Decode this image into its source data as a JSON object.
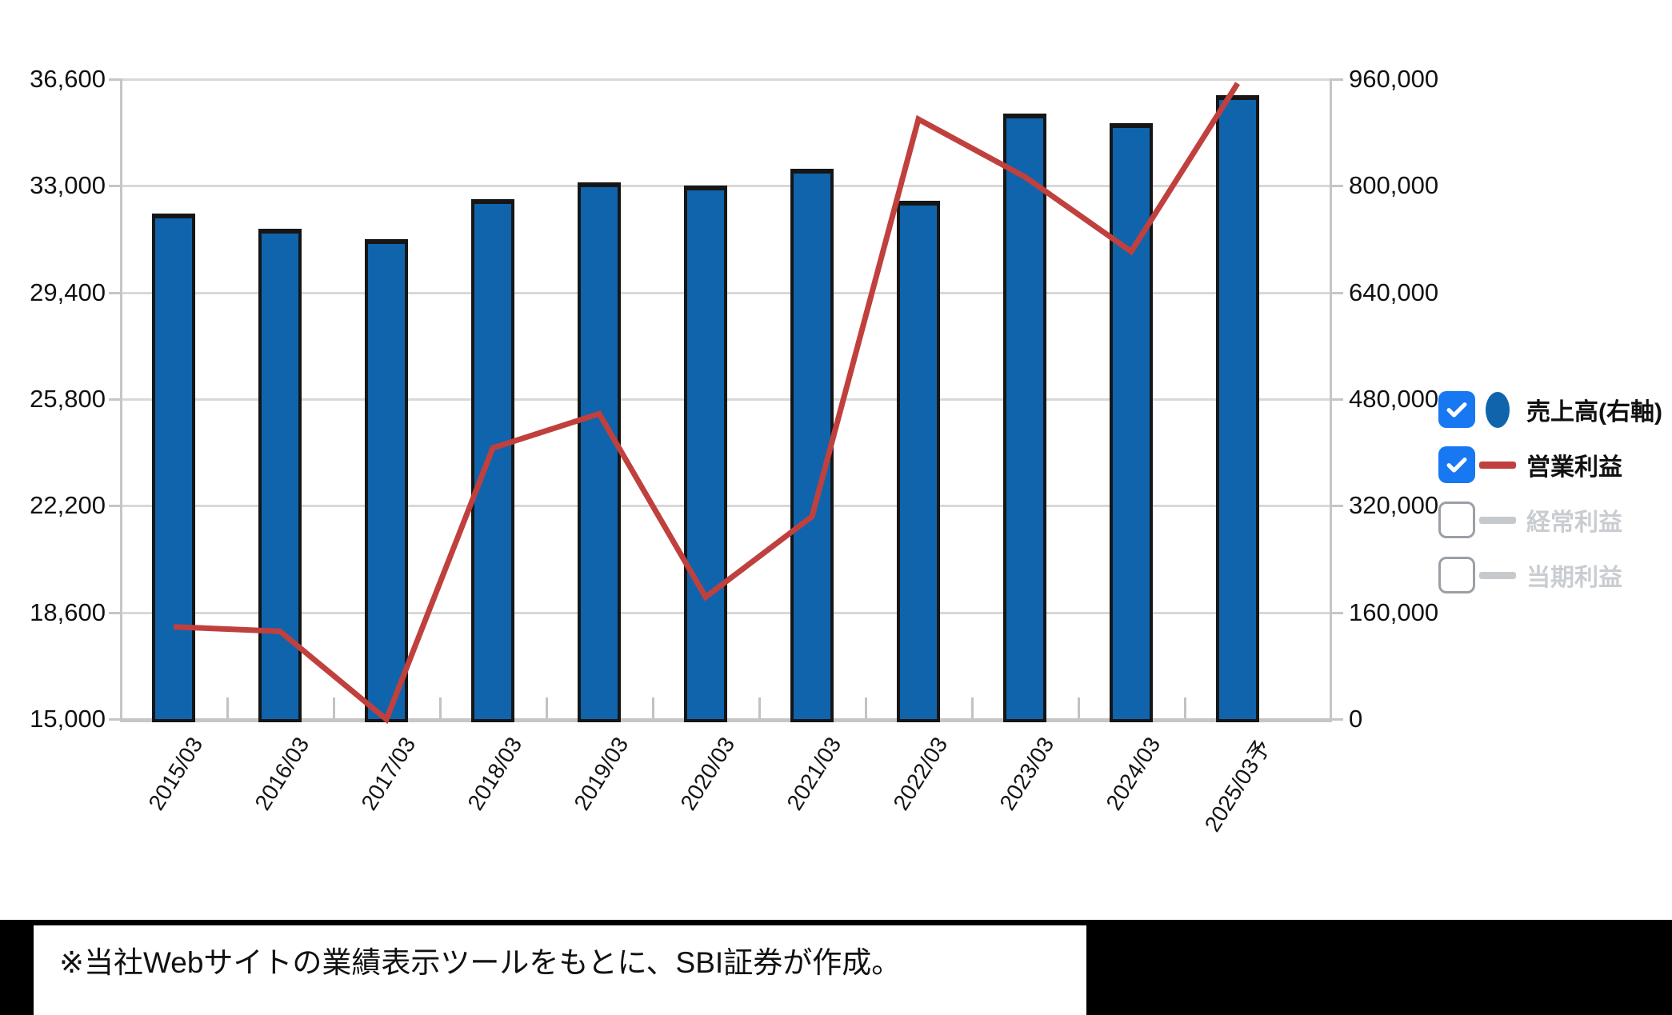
{
  "chart_data": {
    "type": "bar+line",
    "title": "",
    "categories": [
      "2015/03",
      "2016/03",
      "2017/03",
      "2018/03",
      "2019/03",
      "2020/03",
      "2021/03",
      "2022/03",
      "2023/03",
      "2024/03",
      "2025/03予"
    ],
    "series": [
      {
        "key": "revenue",
        "name": "売上高(右軸)",
        "type": "bar",
        "axis": "right",
        "checked": true,
        "color": "#0f64ac",
        "border_color": "#161616",
        "values": [
          758000,
          736000,
          720000,
          780000,
          805000,
          800000,
          825000,
          778000,
          907000,
          893000,
          935000
        ]
      },
      {
        "key": "operating-profit",
        "name": "営業利益",
        "type": "line",
        "axis": "left",
        "checked": true,
        "color": "#c0403e",
        "values": [
          18200,
          18050,
          15100,
          24200,
          25350,
          19200,
          21900,
          35230,
          33300,
          30790,
          36430
        ]
      },
      {
        "key": "ordinary-profit",
        "name": "経常利益",
        "type": "line",
        "axis": "left",
        "checked": false,
        "color": "#c6cacd",
        "values": []
      },
      {
        "key": "net-profit",
        "name": "当期利益",
        "type": "line",
        "axis": "left",
        "checked": false,
        "color": "#c6cacd",
        "values": []
      }
    ],
    "left_axis": {
      "min": 15000,
      "max": 36600,
      "ticks_top_to_bottom": [
        "36,600",
        "33,000",
        "29,400",
        "25,800",
        "22,200",
        "18,600",
        "15,000"
      ]
    },
    "right_axis": {
      "min": 0,
      "max": 960000,
      "ticks_top_to_bottom": [
        "960,000",
        "800,000",
        "640,000",
        "480,000",
        "320,000",
        "160,000",
        "0"
      ]
    },
    "grid": true,
    "legend_position": "right"
  },
  "colors": {
    "grid": "#d8d8d8",
    "axis": "#c6c6c6",
    "checkbox_on": "#1778f2",
    "inactive_text": "#c9cdd1",
    "inactive_marker": "#c6cacd",
    "label_text": "#111111"
  },
  "footer": {
    "note": "※当社Webサイトの業績表示ツールをもとに、SBI証券が作成。"
  }
}
